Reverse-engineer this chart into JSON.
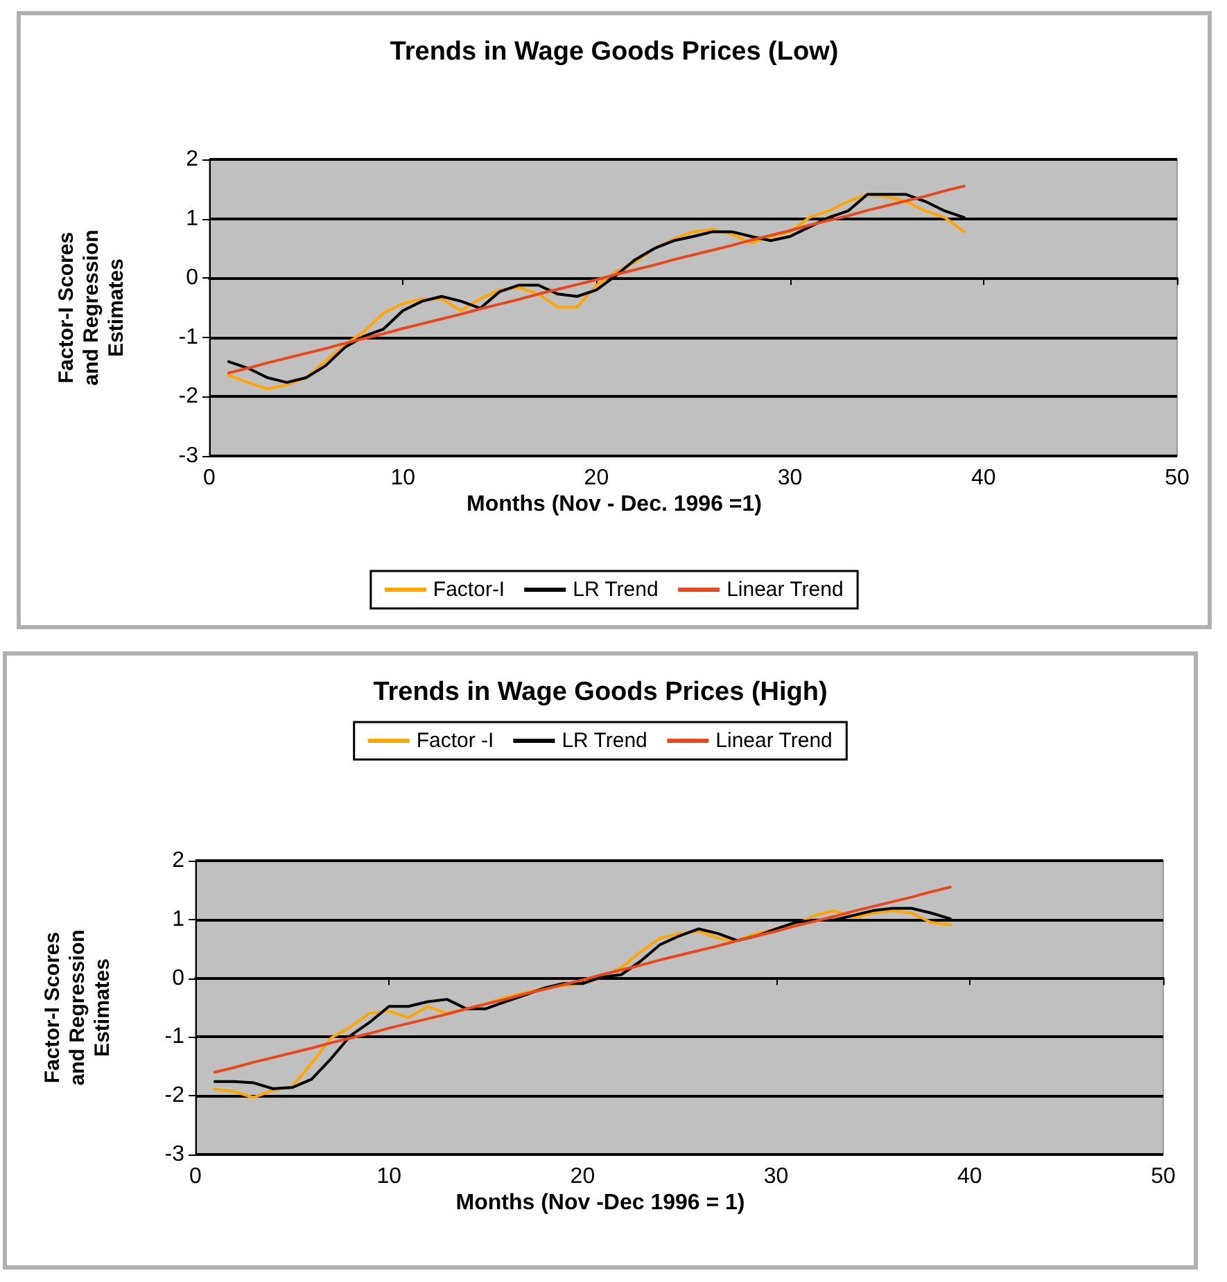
{
  "chart_data": [
    {
      "type": "line",
      "title": "Trends in Wage Goods Prices (Low)",
      "xlabel": "Months (Nov - Dec. 1996 =1)",
      "ylabel": "Factor-I Scores\nand Regression\nEstimates",
      "x": [
        1,
        2,
        3,
        4,
        5,
        6,
        7,
        8,
        9,
        10,
        11,
        12,
        13,
        14,
        15,
        16,
        17,
        18,
        19,
        20,
        21,
        22,
        23,
        24,
        25,
        26,
        27,
        28,
        29,
        30,
        31,
        32,
        33,
        34,
        35,
        36,
        37,
        38,
        39
      ],
      "series": [
        {
          "name": "Factor-I",
          "color": "#ffa500",
          "values": [
            -1.64,
            -1.76,
            -1.87,
            -1.8,
            -1.68,
            -1.4,
            -1.13,
            -0.9,
            -0.59,
            -0.43,
            -0.35,
            -0.35,
            -0.55,
            -0.35,
            -0.2,
            -0.16,
            -0.27,
            -0.49,
            -0.49,
            -0.12,
            0.1,
            0.27,
            0.5,
            0.66,
            0.78,
            0.82,
            0.74,
            0.59,
            0.7,
            0.78,
            1.02,
            1.13,
            1.29,
            1.41,
            1.37,
            1.29,
            1.13,
            1.02,
            0.78
          ]
        },
        {
          "name": "LR Trend",
          "color": "#000000",
          "values": [
            -1.41,
            -1.52,
            -1.68,
            -1.76,
            -1.68,
            -1.48,
            -1.17,
            -0.98,
            -0.86,
            -0.55,
            -0.39,
            -0.31,
            -0.39,
            -0.51,
            -0.23,
            -0.12,
            -0.12,
            -0.27,
            -0.31,
            -0.2,
            0.04,
            0.31,
            0.5,
            0.63,
            0.7,
            0.78,
            0.78,
            0.7,
            0.63,
            0.7,
            0.86,
            1.02,
            1.13,
            1.41,
            1.41,
            1.41,
            1.29,
            1.13,
            1.02
          ]
        },
        {
          "name": "Linear Trend",
          "color": "#e8481c",
          "values": [
            -1.6,
            -1.52,
            -1.43,
            -1.35,
            -1.27,
            -1.19,
            -1.1,
            -1.02,
            -0.94,
            -0.85,
            -0.77,
            -0.69,
            -0.61,
            -0.52,
            -0.44,
            -0.36,
            -0.27,
            -0.19,
            -0.11,
            -0.03,
            0.06,
            0.14,
            0.22,
            0.31,
            0.39,
            0.47,
            0.55,
            0.64,
            0.72,
            0.8,
            0.89,
            0.97,
            1.05,
            1.14,
            1.22,
            1.3,
            1.38,
            1.47,
            1.55
          ]
        }
      ],
      "xlim": [
        0,
        50
      ],
      "xticks": [
        0,
        10,
        20,
        30,
        40,
        50
      ],
      "ylim": [
        -3,
        2
      ],
      "yticks": [
        -3,
        -2,
        -1,
        0,
        1,
        2
      ],
      "grid": "y",
      "legend": "bottom"
    },
    {
      "type": "line",
      "title": "Trends in Wage Goods Prices (High)",
      "xlabel": "Months (Nov -Dec 1996 = 1)",
      "ylabel": "Factor-I Scores\nand Regression\nEstimates",
      "x": [
        1,
        2,
        3,
        4,
        5,
        6,
        7,
        8,
        9,
        10,
        11,
        12,
        13,
        14,
        15,
        16,
        17,
        18,
        19,
        20,
        21,
        22,
        23,
        24,
        25,
        26,
        27,
        28,
        29,
        30,
        31,
        32,
        33,
        34,
        35,
        36,
        37,
        38,
        39
      ],
      "series": [
        {
          "name": "Factor -I",
          "color": "#ffa500",
          "values": [
            -1.89,
            -1.93,
            -2.03,
            -1.91,
            -1.84,
            -1.45,
            -1.02,
            -0.83,
            -0.6,
            -0.56,
            -0.67,
            -0.48,
            -0.6,
            -0.52,
            -0.44,
            -0.33,
            -0.25,
            -0.17,
            -0.13,
            -0.09,
            0.02,
            0.18,
            0.45,
            0.68,
            0.76,
            0.8,
            0.68,
            0.64,
            0.76,
            0.84,
            0.91,
            1.07,
            1.15,
            1.03,
            1.11,
            1.15,
            1.11,
            0.95,
            0.91
          ]
        },
        {
          "name": "LR Trend",
          "color": "#000000",
          "values": [
            -1.76,
            -1.76,
            -1.78,
            -1.88,
            -1.86,
            -1.72,
            -1.37,
            -0.98,
            -0.75,
            -0.48,
            -0.48,
            -0.4,
            -0.36,
            -0.52,
            -0.52,
            -0.4,
            -0.29,
            -0.17,
            -0.09,
            -0.09,
            0.02,
            0.06,
            0.29,
            0.57,
            0.72,
            0.84,
            0.76,
            0.64,
            0.72,
            0.84,
            0.95,
            0.99,
            0.99,
            1.07,
            1.15,
            1.19,
            1.19,
            1.11,
            1.01
          ]
        },
        {
          "name": "Linear Trend",
          "color": "#e8481c",
          "values": [
            -1.6,
            -1.52,
            -1.43,
            -1.35,
            -1.27,
            -1.19,
            -1.1,
            -1.02,
            -0.94,
            -0.85,
            -0.77,
            -0.69,
            -0.61,
            -0.52,
            -0.44,
            -0.36,
            -0.27,
            -0.19,
            -0.11,
            -0.03,
            0.06,
            0.14,
            0.22,
            0.31,
            0.39,
            0.47,
            0.55,
            0.64,
            0.72,
            0.8,
            0.89,
            0.97,
            1.05,
            1.14,
            1.22,
            1.3,
            1.38,
            1.47,
            1.55
          ]
        }
      ],
      "xlim": [
        0,
        50
      ],
      "xticks": [
        0,
        10,
        20,
        30,
        40,
        50
      ],
      "ylim": [
        -3,
        2
      ],
      "yticks": [
        -3,
        -2,
        -1,
        0,
        1,
        2
      ],
      "grid": "y",
      "legend": "top"
    }
  ]
}
